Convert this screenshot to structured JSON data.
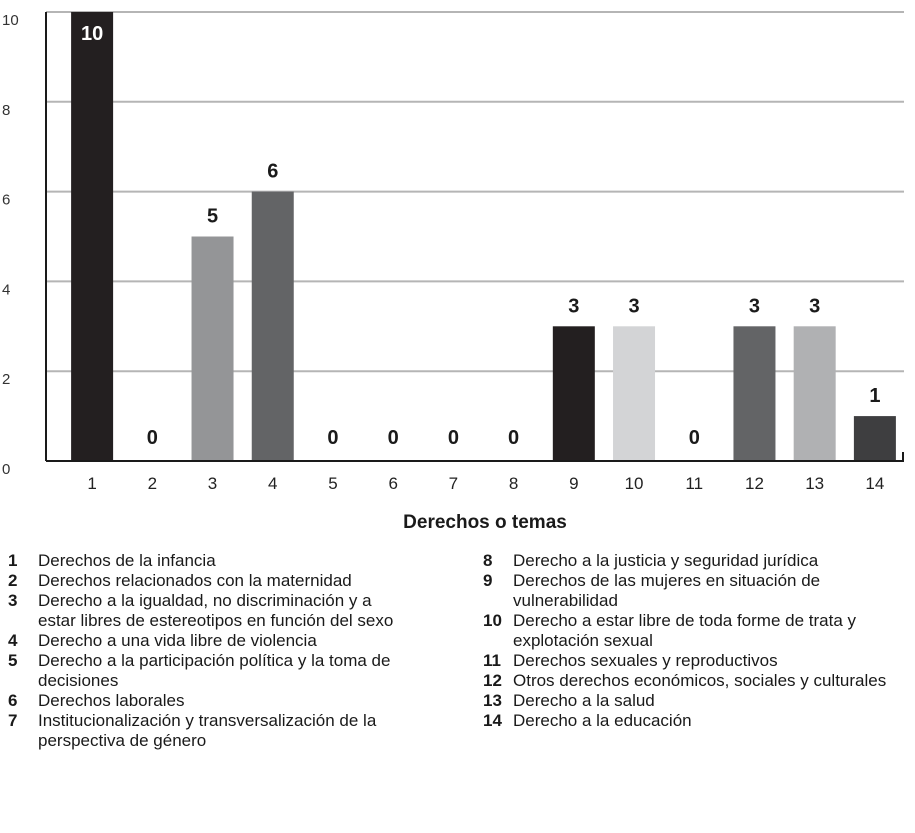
{
  "chart_data": {
    "type": "bar",
    "xlabel": "Derechos o temas",
    "ylabel": "",
    "ylim": [
      0,
      10
    ],
    "yticks": [
      "0",
      "2",
      "4",
      "6",
      "8",
      "10"
    ],
    "grid": true,
    "categories": [
      "1",
      "2",
      "3",
      "4",
      "5",
      "6",
      "7",
      "8",
      "9",
      "10",
      "11",
      "12",
      "13",
      "14"
    ],
    "values": [
      10,
      0,
      5,
      6,
      0,
      0,
      0,
      0,
      3,
      3,
      0,
      3,
      3,
      1
    ],
    "value_labels": [
      "10",
      "0",
      "5",
      "6",
      "0",
      "0",
      "0",
      "0",
      "3",
      "3",
      "0",
      "3",
      "3",
      "1"
    ],
    "bar_colors": [
      "#231f20",
      "#231f20",
      "#949597",
      "#636466",
      "#231f20",
      "#231f20",
      "#231f20",
      "#231f20",
      "#231f20",
      "#d3d4d6",
      "#231f20",
      "#636466",
      "#b0b1b3",
      "#3e3e40"
    ]
  },
  "legend": {
    "left": [
      {
        "num": "1",
        "text": "Derechos de la infancia"
      },
      {
        "num": "2",
        "text": "Derechos relacionados con la maternidad"
      },
      {
        "num": "3",
        "text": "Derecho a la igualdad, no discriminación y a estar libres de estereotipos en función del sexo"
      },
      {
        "num": "4",
        "text": "Derecho a una vida libre de violencia"
      },
      {
        "num": "5",
        "text": "Derecho a la participación política y la toma de decisiones"
      },
      {
        "num": "6",
        "text": "Derechos laborales"
      },
      {
        "num": "7",
        "text": "Institucionalización y transversalización de la perspectiva de género"
      }
    ],
    "right": [
      {
        "num": "8",
        "text": "Derecho a la justicia y seguridad jurídica"
      },
      {
        "num": "9",
        "text": "Derechos de las mujeres en situación de vulnerabilidad"
      },
      {
        "num": "10",
        "text": "Derecho a estar libre de toda forme de trata y explotación sexual"
      },
      {
        "num": "11",
        "text": "Derechos sexuales y reproductivos"
      },
      {
        "num": "12",
        "text": "Otros derechos económicos, sociales y culturales"
      },
      {
        "num": "13",
        "text": "Derecho a la salud"
      },
      {
        "num": "14",
        "text": "Derecho a la educación"
      }
    ]
  }
}
